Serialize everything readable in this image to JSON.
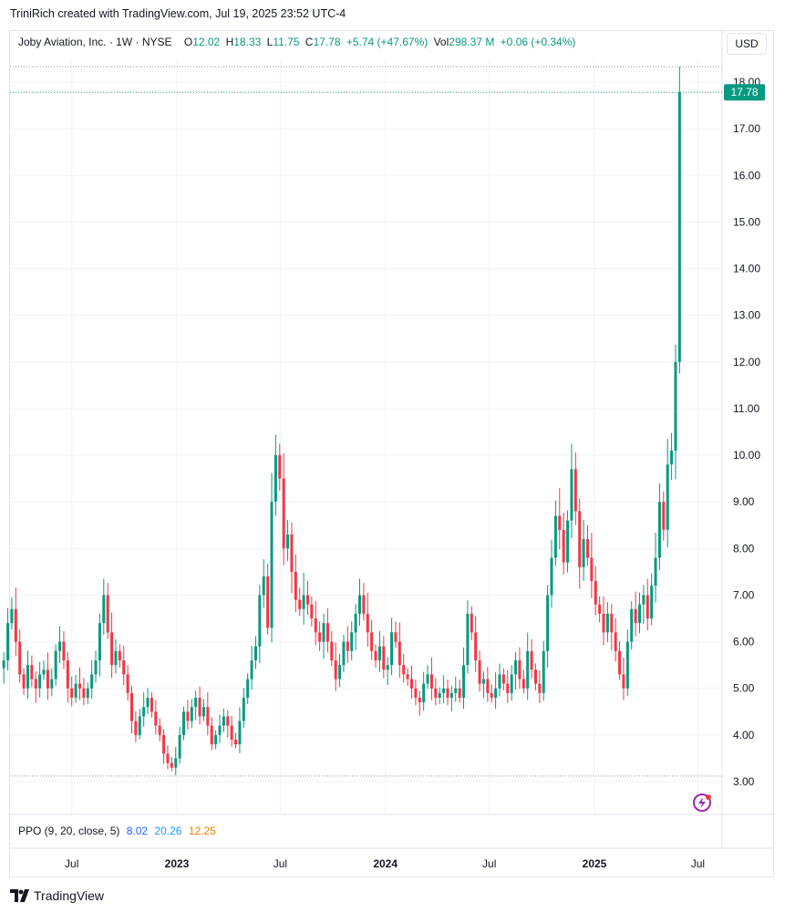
{
  "attribution": "TriniRich created with TradingView.com, Jul 19, 2025 23:52 UTC-4",
  "legend": {
    "symbol": "Joby Aviation, Inc. · 1W · NYSE",
    "open_label": "O",
    "open": "12.02",
    "high_label": "H",
    "high": "18.33",
    "low_label": "L",
    "low": "11.75",
    "close_label": "C",
    "close": "17.78",
    "change": "+5.74 (+47.67%)",
    "vol_label": "Vol",
    "vol": "298.37 M",
    "vol_change": "+0.06 (+0.34%)"
  },
  "currency_button": "USD",
  "last_price_label": "17.78",
  "indicator": {
    "label": "PPO (9, 20, close, 5)",
    "v1": "8.02",
    "v2": "20.26",
    "v3": "12.25"
  },
  "footer_logo": "TradingView",
  "colors": {
    "up": "#089981",
    "down": "#f23645",
    "grid": "#f0f3fa",
    "text": "#131722"
  },
  "chart_data": {
    "type": "candlestick",
    "y_ticks": [
      "3.00",
      "4.00",
      "5.00",
      "6.00",
      "7.00",
      "8.00",
      "9.00",
      "10.00",
      "11.00",
      "12.00",
      "13.00",
      "14.00",
      "15.00",
      "16.00",
      "17.00",
      "18.00"
    ],
    "x_ticks": [
      {
        "label": "Jul",
        "date": "2022-07-01",
        "bold": false
      },
      {
        "label": "2023",
        "date": "2023-01-01",
        "bold": true
      },
      {
        "label": "Jul",
        "date": "2023-07-01",
        "bold": false
      },
      {
        "label": "2024",
        "date": "2024-01-01",
        "bold": true
      },
      {
        "label": "Jul",
        "date": "2024-07-01",
        "bold": false
      },
      {
        "label": "2025",
        "date": "2025-01-01",
        "bold": true
      },
      {
        "label": "Jul",
        "date": "2025-07-01",
        "bold": false
      }
    ],
    "visible_range": {
      "high": 18.33,
      "low": 3.12
    },
    "start_date": "2022-03-04",
    "interval": "1W",
    "closes": [
      5.6,
      6.4,
      6.7,
      6.0,
      5.3,
      5.0,
      5.5,
      5.2,
      5.0,
      5.3,
      5.4,
      5.0,
      5.2,
      5.8,
      6.0,
      5.6,
      5.0,
      4.8,
      5.1,
      5.0,
      4.8,
      5.0,
      5.3,
      5.6,
      6.4,
      7.0,
      6.2,
      5.5,
      5.8,
      5.6,
      5.3,
      4.9,
      4.3,
      4.0,
      4.4,
      4.6,
      4.8,
      4.5,
      4.2,
      4.0,
      3.6,
      3.4,
      3.3,
      3.5,
      4.0,
      4.5,
      4.3,
      4.6,
      4.8,
      4.4,
      4.6,
      4.2,
      3.8,
      4.0,
      4.2,
      4.4,
      4.2,
      3.9,
      3.8,
      4.3,
      4.8,
      5.2,
      5.6,
      5.9,
      7.0,
      7.4,
      6.3,
      9.0,
      10.0,
      9.5,
      8.0,
      8.3,
      7.5,
      6.9,
      6.7,
      7.0,
      6.8,
      6.5,
      6.2,
      6.0,
      6.4,
      6.0,
      5.6,
      5.2,
      5.5,
      6.0,
      5.8,
      6.2,
      6.6,
      7.0,
      6.6,
      6.2,
      5.8,
      5.6,
      5.9,
      5.4,
      5.5,
      6.2,
      6.0,
      5.5,
      5.3,
      5.2,
      5.0,
      4.8,
      4.7,
      5.1,
      5.3,
      5.0,
      4.8,
      4.9,
      5.0,
      4.8,
      4.9,
      5.0,
      4.8,
      5.5,
      6.6,
      6.2,
      5.6,
      5.1,
      5.2,
      4.9,
      4.8,
      5.0,
      5.3,
      5.1,
      4.9,
      5.3,
      5.6,
      5.2,
      5.0,
      5.8,
      5.4,
      5.1,
      4.9,
      5.8,
      7.0,
      7.8,
      8.7,
      8.4,
      7.7,
      8.6,
      9.7,
      8.8,
      7.6,
      8.2,
      7.8,
      7.3,
      6.8,
      6.6,
      6.2,
      6.6,
      6.2,
      5.8,
      5.3,
      5.0,
      6.0,
      6.7,
      6.4,
      6.8,
      7.0,
      6.5,
      7.2,
      7.8,
      9.0,
      8.4,
      9.8,
      10.1,
      12.0,
      17.78
    ]
  }
}
